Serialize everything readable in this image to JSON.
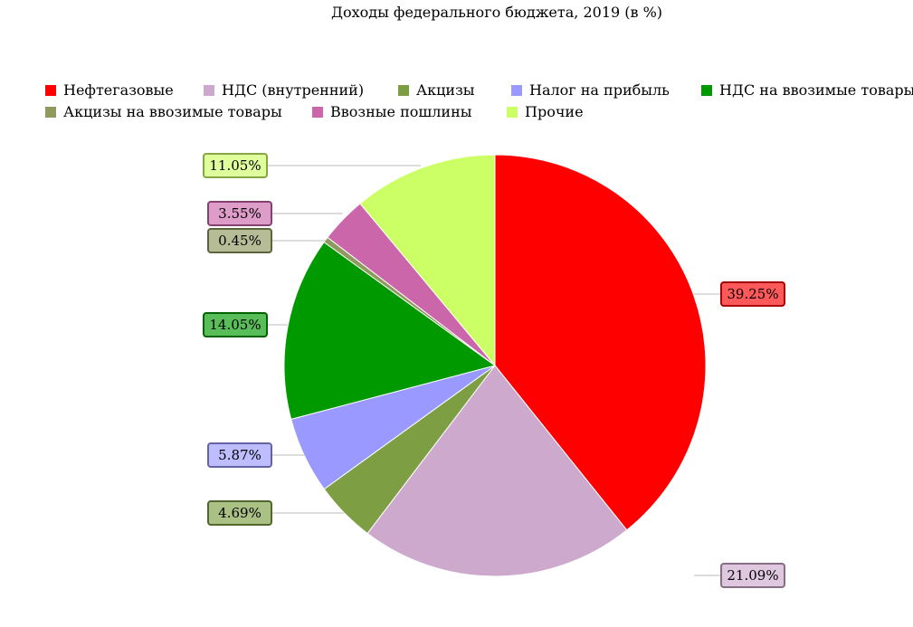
{
  "chart_data": {
    "type": "pie",
    "title": "Доходы федерального бюджета, 2019 (в %)",
    "slices": [
      {
        "label": "Нефтегазовые",
        "value": 39.25,
        "display": "39.25%",
        "color": "#ff0000"
      },
      {
        "label": "НДС (внутренний)",
        "value": 21.09,
        "display": "21.09%",
        "color": "#cdaacd"
      },
      {
        "label": "Акцизы",
        "value": 4.69,
        "display": "4.69%",
        "color": "#7e9e44"
      },
      {
        "label": "Налог на прибыль",
        "value": 5.87,
        "display": "5.87%",
        "color": "#9999ff"
      },
      {
        "label": "НДС на ввозимые товары",
        "value": 14.05,
        "display": "14.05%",
        "color": "#009900"
      },
      {
        "label": "Акцизы на ввозимые товары",
        "value": 0.45,
        "display": "0.45%",
        "color": "#8f9a5e"
      },
      {
        "label": "Ввозные пошлины",
        "value": 3.55,
        "display": "3.55%",
        "color": "#cc66aa"
      },
      {
        "label": "Прочие",
        "value": 11.05,
        "display": "11.05%",
        "color": "#ccff66"
      }
    ],
    "start": "12 o'clock",
    "direction": "clockwise",
    "legend_position": "top"
  }
}
